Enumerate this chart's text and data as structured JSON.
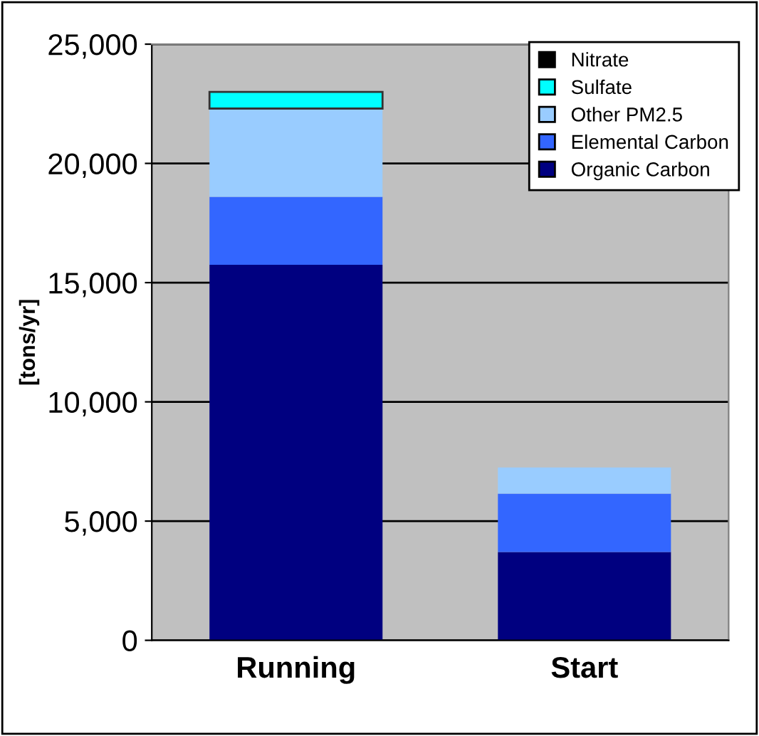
{
  "chart_data": {
    "type": "bar",
    "stacked": true,
    "ylabel": "[tons/yr]",
    "categories": [
      "Running",
      "Start"
    ],
    "series": [
      {
        "name": "Organic Carbon",
        "color": "#000080",
        "values": [
          15750,
          3700
        ]
      },
      {
        "name": "Elemental Carbon",
        "color": "#3366ff",
        "values": [
          2850,
          2450
        ]
      },
      {
        "name": "Other PM2.5",
        "color": "#99ccff",
        "values": [
          3700,
          1100
        ]
      },
      {
        "name": "Sulfate",
        "color": "#00ffff",
        "values": [
          700,
          0
        ]
      },
      {
        "name": "Nitrate",
        "color": "#000000",
        "values": [
          0,
          0
        ]
      }
    ],
    "ylim": [
      0,
      25000
    ],
    "yticks": [
      {
        "value": 0,
        "label": "0"
      },
      {
        "value": 5000,
        "label": "5,000"
      },
      {
        "value": 10000,
        "label": "10,000"
      },
      {
        "value": 15000,
        "label": "15,000"
      },
      {
        "value": 20000,
        "label": "20,000"
      },
      {
        "value": 25000,
        "label": "25,000"
      }
    ],
    "grid": "y",
    "legend": "top right"
  }
}
